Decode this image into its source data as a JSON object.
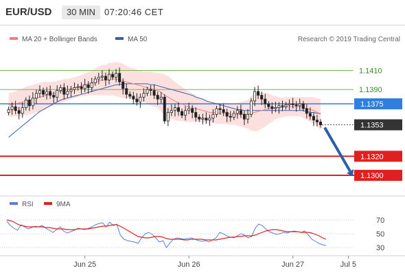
{
  "header": {
    "symbol": "EUR/USD",
    "timeframe": "30 MIN",
    "clock": "07:20:46 CET"
  },
  "main_panel": {
    "legend": [
      {
        "name": "MA 20 + Bollinger Bands",
        "color": "#f08080"
      },
      {
        "name": "MA 50",
        "color": "#3a5fa8"
      }
    ],
    "copyright": "Research © 2019 Trading Central",
    "price_range": [
      1.1282,
      1.1432
    ],
    "levels": [
      {
        "price": 1.141,
        "label": "1.1410",
        "kind": "resistance",
        "color": "#7ab648"
      },
      {
        "price": 1.139,
        "label": "1.1390",
        "kind": "resistance",
        "color": "#7ab648"
      },
      {
        "price": 1.1375,
        "label": "1.1375",
        "kind": "pivot",
        "color": "#2f7fe0"
      },
      {
        "price": 1.1353,
        "label": "1.1353",
        "kind": "last",
        "color": "#333333"
      },
      {
        "price": 1.132,
        "label": "1.1320",
        "kind": "target",
        "color": "#e02020"
      },
      {
        "price": 1.13,
        "label": "1.1300",
        "kind": "target",
        "color": "#e02020"
      }
    ],
    "arrow": {
      "from": 1.1353,
      "to": 1.13,
      "color": "#2a5ea8"
    }
  },
  "chart_data": {
    "type": "candlestick",
    "series_close": [
      1.1369,
      1.1372,
      1.1368,
      1.1365,
      1.1371,
      1.1379,
      1.1373,
      1.1381,
      1.1386,
      1.1389,
      1.1385,
      1.1388,
      1.1384,
      1.1382,
      1.1389,
      1.1392,
      1.1385,
      1.1388,
      1.139,
      1.1392,
      1.1393,
      1.1391,
      1.1395,
      1.1392,
      1.1397,
      1.1401,
      1.1403,
      1.1404,
      1.14,
      1.1406,
      1.1403,
      1.1407,
      1.1398,
      1.1391,
      1.1385,
      1.1383,
      1.138,
      1.1377,
      1.1382,
      1.1386,
      1.139,
      1.1389,
      1.1384,
      1.138,
      1.1382,
      1.1357,
      1.1366,
      1.1368,
      1.1371,
      1.1367,
      1.1363,
      1.1368,
      1.137,
      1.1366,
      1.1361,
      1.1359,
      1.136,
      1.1358,
      1.136,
      1.1364,
      1.137,
      1.1369,
      1.1366,
      1.1362,
      1.1361,
      1.1365,
      1.1368,
      1.1364,
      1.1359,
      1.1364,
      1.1378,
      1.1388,
      1.1384,
      1.138,
      1.1375,
      1.1372,
      1.137,
      1.1371,
      1.1373,
      1.1372,
      1.1374,
      1.1375,
      1.1374,
      1.1373,
      1.1375,
      1.137,
      1.1365,
      1.1362,
      1.1358,
      1.1356,
      1.1353
    ],
    "ma20": [
      1.1374,
      1.1374,
      1.1375,
      1.1376,
      1.1377,
      1.1378,
      1.1379,
      1.138,
      1.1381,
      1.1382,
      1.1383,
      1.1384,
      1.1385,
      1.1386,
      1.1387,
      1.1388,
      1.1389,
      1.139,
      1.1391,
      1.1392,
      1.1393,
      1.1394,
      1.1395,
      1.1396,
      1.1397,
      1.1398,
      1.1399,
      1.14,
      1.14,
      1.1401,
      1.1401,
      1.1401,
      1.14,
      1.1399,
      1.1398,
      1.1397,
      1.1396,
      1.1395,
      1.1394,
      1.1393,
      1.1392,
      1.1391,
      1.139,
      1.1389,
      1.1387,
      1.1384,
      1.1382,
      1.138,
      1.1378,
      1.1376,
      1.1375,
      1.1373,
      1.1372,
      1.1371,
      1.137,
      1.1369,
      1.1368,
      1.1367,
      1.1366,
      1.1366,
      1.1365,
      1.1365,
      1.1365,
      1.1365,
      1.1364,
      1.1364,
      1.1364,
      1.1364,
      1.1364,
      1.1364,
      1.1365,
      1.1366,
      1.1367,
      1.1368,
      1.1369,
      1.137,
      1.137,
      1.1371,
      1.1371,
      1.1371,
      1.1372,
      1.1372,
      1.1372,
      1.1372,
      1.1372,
      1.1371,
      1.137,
      1.1369,
      1.1368,
      1.1366,
      1.1364
    ],
    "bb_width": [
      0.0012,
      0.0013,
      0.0013,
      0.0014,
      0.0014,
      0.0015,
      0.0015,
      0.0015,
      0.0015,
      0.0015,
      0.0015,
      0.0014,
      0.0013,
      0.0012,
      0.0012,
      0.0012,
      0.0012,
      0.0011,
      0.0011,
      0.0011,
      0.0011,
      0.0011,
      0.0012,
      0.0012,
      0.0013,
      0.0014,
      0.0015,
      0.0016,
      0.0016,
      0.0017,
      0.0017,
      0.0018,
      0.0018,
      0.0018,
      0.0017,
      0.0016,
      0.0016,
      0.0016,
      0.0016,
      0.0016,
      0.0017,
      0.0018,
      0.0018,
      0.0018,
      0.002,
      0.0022,
      0.0022,
      0.0021,
      0.002,
      0.0019,
      0.0018,
      0.0017,
      0.0016,
      0.0015,
      0.0014,
      0.0013,
      0.0012,
      0.0012,
      0.0011,
      0.0011,
      0.0011,
      0.0011,
      0.0011,
      0.0011,
      0.0011,
      0.0011,
      0.0012,
      0.0013,
      0.0014,
      0.0015,
      0.0018,
      0.002,
      0.002,
      0.0019,
      0.0018,
      0.0016,
      0.0014,
      0.0012,
      0.0011,
      0.001,
      0.001,
      0.001,
      0.001,
      0.001,
      0.001,
      0.0011,
      0.0012,
      0.0013,
      0.0014,
      0.0015,
      0.0016
    ],
    "ma50": [
      1.134,
      1.1343,
      1.1346,
      1.1349,
      1.1352,
      1.1355,
      1.1358,
      1.1361,
      1.1364,
      1.1367,
      1.1369,
      1.1371,
      1.1373,
      1.1375,
      1.1377,
      1.1379,
      1.138,
      1.1381,
      1.1382,
      1.1383,
      1.1384,
      1.1385,
      1.1386,
      1.1387,
      1.1388,
      1.1389,
      1.139,
      1.1391,
      1.1392,
      1.1393,
      1.1394,
      1.1395,
      1.1395,
      1.1396,
      1.1396,
      1.1396,
      1.1396,
      1.1396,
      1.1396,
      1.1396,
      1.1396,
      1.1395,
      1.1395,
      1.1394,
      1.1393,
      1.1392,
      1.1391,
      1.139,
      1.1389,
      1.1388,
      1.1387,
      1.1386,
      1.1385,
      1.1384,
      1.1382,
      1.1381,
      1.138,
      1.1378,
      1.1377,
      1.1376,
      1.1375,
      1.1374,
      1.1373,
      1.1372,
      1.1371,
      1.137,
      1.1369,
      1.1369,
      1.1368,
      1.1368,
      1.1368,
      1.1368,
      1.1368,
      1.1368,
      1.1368,
      1.1368,
      1.1368,
      1.1368,
      1.1368,
      1.1368,
      1.1368,
      1.1368,
      1.1368,
      1.1368,
      1.1368,
      1.1368,
      1.1367,
      1.1366,
      1.1366,
      1.1365,
      1.1365
    ],
    "x_labels": [
      {
        "label": "Jun 25",
        "index": 22
      },
      {
        "label": "Jun 26",
        "index": 52
      },
      {
        "label": "Jun 27",
        "index": 82
      },
      {
        "label": "Jul 5",
        "index": 98
      }
    ],
    "x_count": 100
  },
  "rsi_panel": {
    "legend": [
      {
        "name": "RSI",
        "color": "#5b7fd6"
      },
      {
        "name": "9MA",
        "color": "#e02020"
      }
    ],
    "range": [
      22,
      80
    ],
    "ticks": [
      {
        "value": 70,
        "label": "70"
      },
      {
        "value": 50,
        "label": "50"
      },
      {
        "value": 30,
        "label": "30"
      }
    ],
    "rsi": [
      68,
      62,
      58,
      55,
      63,
      60,
      57,
      59,
      61,
      60,
      62,
      58,
      55,
      52,
      56,
      60,
      54,
      51,
      53,
      55,
      58,
      57,
      56,
      58,
      60,
      63,
      65,
      66,
      60,
      67,
      62,
      64,
      48,
      42,
      40,
      39,
      38,
      36,
      44,
      50,
      52,
      49,
      44,
      38,
      40,
      30,
      37,
      42,
      44,
      43,
      42,
      43,
      44,
      42,
      40,
      39,
      40,
      38,
      41,
      44,
      52,
      50,
      47,
      45,
      44,
      47,
      50,
      48,
      44,
      46,
      58,
      64,
      62,
      57,
      53,
      51,
      49,
      50,
      52,
      51,
      53,
      54,
      53,
      52,
      54,
      48,
      42,
      39,
      36,
      34,
      33
    ],
    "ma9": [
      70,
      69,
      67,
      64,
      62,
      61,
      60,
      60,
      60,
      60,
      60,
      59,
      59,
      58,
      57,
      57,
      57,
      56,
      56,
      56,
      57,
      57,
      57,
      57,
      58,
      59,
      60,
      61,
      61,
      62,
      63,
      63,
      61,
      58,
      55,
      52,
      49,
      46,
      45,
      44,
      44,
      45,
      46,
      46,
      45,
      43,
      42,
      42,
      42,
      42,
      41,
      41,
      42,
      42,
      42,
      42,
      41,
      41,
      41,
      41,
      42,
      43,
      44,
      45,
      45,
      46,
      46,
      47,
      47,
      47,
      48,
      50,
      52,
      54,
      55,
      56,
      56,
      55,
      54,
      53,
      53,
      53,
      53,
      52,
      52,
      52,
      51,
      49,
      47,
      44,
      42
    ]
  }
}
